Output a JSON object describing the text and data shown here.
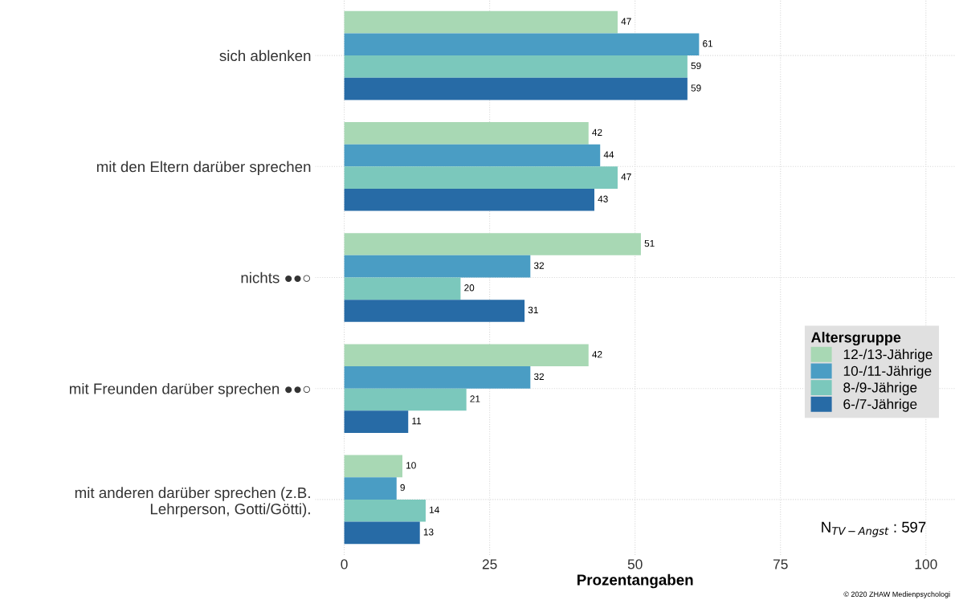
{
  "chart_data": {
    "type": "bar",
    "orientation": "horizontal",
    "xlabel": "Prozentangaben",
    "legend_title": "Altersgruppe",
    "legend": "right",
    "grid": true,
    "data_labels": true,
    "categories": [
      "sich ablenken",
      "mit den Eltern darüber sprechen",
      "nichts ●●○",
      "mit Freunden darüber sprechen ●●○",
      "mit anderen darüber sprechen (z.B.\nLehrperson, Gotti/Götti)."
    ],
    "series": [
      {
        "name": "12-/13-Jährige",
        "color": "#a8d8b4",
        "values": [
          47,
          42,
          51,
          42,
          10
        ]
      },
      {
        "name": "10-/11-Jährige",
        "color": "#4a9dc4",
        "values": [
          61,
          44,
          32,
          32,
          9
        ]
      },
      {
        "name": "8-/9-Jährige",
        "color": "#7bc8bc",
        "values": [
          59,
          47,
          20,
          21,
          14
        ]
      },
      {
        "name": "6-/7-Jährige",
        "color": "#276ba6",
        "values": [
          59,
          43,
          31,
          11,
          13
        ]
      }
    ],
    "xlim": [
      -5,
      105
    ],
    "xticks": [
      0,
      25,
      50,
      75,
      100
    ],
    "annotations": [
      "N$_{TV−Angst}$ : 597",
      "© 2020 ZHAW Medienpsychologi"
    ]
  }
}
